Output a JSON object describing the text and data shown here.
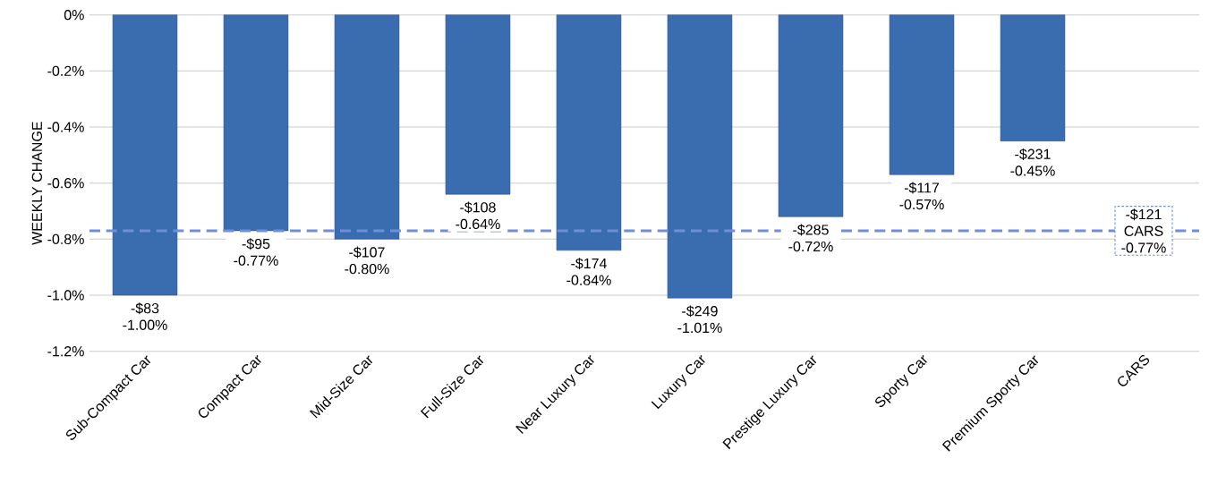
{
  "chart_data": {
    "type": "bar",
    "ylabel": "WEEKLY CHANGE",
    "categories": [
      "Sub-Compact Car",
      "Compact Car",
      "Mid-Size Car",
      "Full-Size Car",
      "Near Luxury Car",
      "Luxury Car",
      "Prestige Luxury Car",
      "Sporty Car",
      "Premium Sporty Car",
      "CARS"
    ],
    "values": [
      -1.0,
      -0.77,
      -0.8,
      -0.64,
      -0.84,
      -1.01,
      -0.72,
      -0.57,
      -0.45,
      null
    ],
    "value_labels": [
      "-$83 -1.00%",
      "-$95 -0.77%",
      "-$107 -0.80%",
      "-$108 -0.64%",
      "-$174 -0.84%",
      "-$249 -1.01%",
      "-$285 -0.72%",
      "-$117 -0.57%",
      "-$231 -0.45%",
      null
    ],
    "color": "#3a6cb0",
    "ylim": [
      -1.2,
      0
    ],
    "yticks": [
      {
        "value": 0,
        "label": "0%"
      },
      {
        "value": -0.2,
        "label": "-0.2%"
      },
      {
        "value": -0.4,
        "label": "-0.4%"
      },
      {
        "value": -0.6,
        "label": "-0.6%"
      },
      {
        "value": -0.8,
        "label": "-0.8%"
      },
      {
        "value": -1.0,
        "label": "-1.0%"
      },
      {
        "value": -1.2,
        "label": "-1.2%"
      }
    ],
    "grid": "y",
    "ref_lines": [
      {
        "axis": "y",
        "value": -0.77,
        "label": "-$121 CARS -0.77%",
        "color": "#6f8fd8",
        "line_style": "dashed"
      }
    ]
  }
}
